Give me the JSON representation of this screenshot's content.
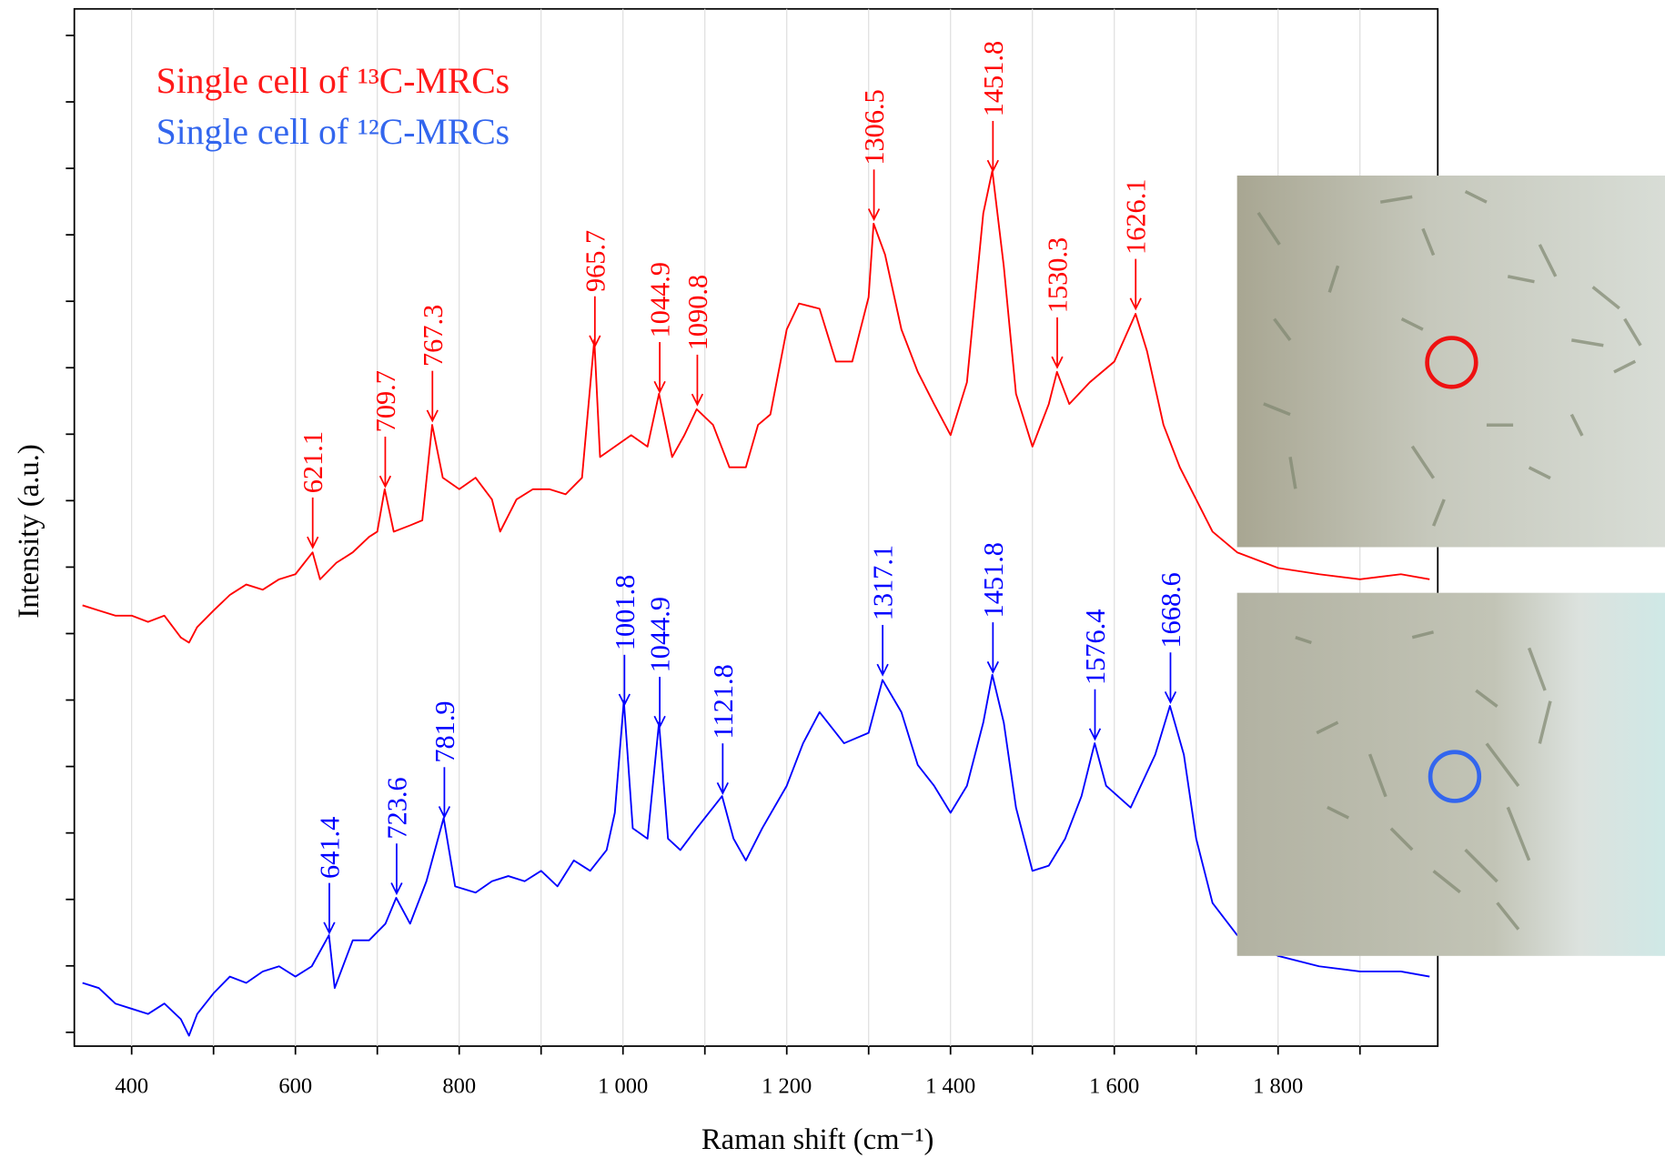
{
  "chart_data": {
    "type": "line",
    "x_label": "Raman shift (cm⁻¹)",
    "y_label": "Intensity (a.u.)",
    "xlim": [
      330,
      1995
    ],
    "ylim": [
      0,
      100
    ],
    "xticks": [
      400,
      600,
      800,
      {
        "value": 1000,
        "label": "1 000"
      },
      {
        "value": 1200,
        "label": "1 200"
      },
      {
        "value": 1400,
        "label": "1 400"
      },
      {
        "value": 1600,
        "label": "1 600"
      },
      {
        "value": 1800,
        "label": "1 800"
      }
    ],
    "xminorticks": [
      500,
      700,
      900,
      1100,
      1300,
      1500,
      1700,
      1900
    ],
    "grid": true,
    "legend": "upper left",
    "series": [
      {
        "name": "Single cell of ¹³C-MRCs",
        "color": "#ff0000",
        "legend_color": "#ff1a1a",
        "x": [
          340,
          360,
          380,
          400,
          420,
          440,
          460,
          470,
          480,
          500,
          520,
          540,
          560,
          580,
          600,
          621,
          630,
          650,
          670,
          690,
          700,
          709,
          720,
          740,
          755,
          767,
          780,
          800,
          820,
          840,
          850,
          870,
          890,
          910,
          930,
          950,
          965,
          972,
          990,
          1010,
          1030,
          1044,
          1060,
          1075,
          1090,
          1110,
          1130,
          1150,
          1165,
          1180,
          1200,
          1215,
          1240,
          1260,
          1280,
          1300,
          1306,
          1320,
          1340,
          1360,
          1380,
          1400,
          1420,
          1440,
          1451,
          1465,
          1480,
          1500,
          1520,
          1530,
          1545,
          1570,
          1600,
          1626,
          1640,
          1660,
          1680,
          1700,
          1720,
          1750,
          1800,
          1850,
          1900,
          1950,
          1985
        ],
        "values": [
          42.5,
          42.0,
          41.5,
          41.5,
          40.9,
          41.5,
          39.4,
          38.9,
          40.4,
          42.0,
          43.5,
          44.5,
          44.0,
          45.0,
          45.5,
          47.6,
          45.0,
          46.6,
          47.6,
          49.1,
          49.6,
          53.7,
          49.6,
          50.2,
          50.7,
          59.9,
          54.8,
          53.7,
          54.8,
          52.7,
          49.6,
          52.7,
          53.7,
          53.7,
          53.2,
          54.8,
          68.1,
          56.8,
          57.8,
          58.9,
          57.8,
          62.9,
          56.8,
          58.9,
          61.4,
          59.9,
          55.8,
          55.8,
          59.9,
          60.9,
          69.1,
          71.6,
          71.1,
          66.0,
          66.0,
          72.2,
          79.3,
          76.3,
          69.1,
          65.0,
          61.9,
          58.9,
          64.0,
          80.3,
          84.4,
          75.2,
          62.9,
          57.8,
          61.9,
          65.0,
          61.9,
          64.0,
          66.0,
          70.6,
          67.0,
          59.9,
          55.8,
          52.7,
          49.6,
          47.6,
          46.1,
          45.5,
          45.0,
          45.5,
          45.0
        ],
        "peaks": [
          621.1,
          709.7,
          767.3,
          965.7,
          1044.9,
          1090.8,
          1306.5,
          1451.8,
          1530.3,
          1626.1
        ]
      },
      {
        "name": "Single cell of ¹²C-MRCs",
        "color": "#0000ff",
        "legend_color": "#3366ee",
        "x": [
          340,
          360,
          380,
          400,
          420,
          440,
          460,
          470,
          480,
          500,
          520,
          540,
          560,
          580,
          600,
          620,
          641,
          648,
          670,
          690,
          710,
          723,
          740,
          760,
          781,
          795,
          820,
          840,
          860,
          880,
          900,
          920,
          940,
          960,
          980,
          990,
          1001,
          1012,
          1030,
          1044,
          1055,
          1070,
          1090,
          1110,
          1121,
          1135,
          1150,
          1170,
          1200,
          1220,
          1240,
          1270,
          1300,
          1317,
          1340,
          1360,
          1380,
          1400,
          1420,
          1440,
          1451,
          1465,
          1480,
          1500,
          1520,
          1540,
          1560,
          1576,
          1590,
          1620,
          1650,
          1668,
          1685,
          1700,
          1720,
          1750,
          1800,
          1850,
          1900,
          1950,
          1985
        ],
        "values": [
          6.1,
          5.6,
          4.1,
          3.6,
          3.1,
          4.1,
          2.6,
          1.0,
          3.1,
          5.1,
          6.7,
          6.1,
          7.2,
          7.7,
          6.7,
          7.7,
          10.7,
          5.6,
          10.2,
          10.2,
          11.8,
          14.3,
          11.8,
          15.9,
          22.0,
          15.4,
          14.8,
          15.9,
          16.4,
          15.9,
          16.9,
          15.4,
          17.9,
          16.9,
          18.9,
          22.5,
          33.3,
          21.0,
          20.0,
          31.2,
          20.0,
          18.9,
          21.0,
          23.0,
          24.1,
          20.0,
          17.9,
          21.0,
          25.1,
          29.2,
          32.2,
          29.2,
          30.2,
          35.3,
          32.2,
          27.1,
          25.1,
          22.5,
          25.1,
          31.2,
          35.8,
          31.2,
          23.0,
          16.9,
          17.4,
          20.0,
          24.1,
          29.2,
          25.1,
          23.0,
          28.1,
          32.8,
          28.1,
          20.0,
          13.8,
          10.7,
          8.7,
          7.7,
          7.2,
          7.2,
          6.7
        ],
        "peaks": [
          641.4,
          723.6,
          781.9,
          1001.8,
          1044.9,
          1121.8,
          1317.1,
          1451.8,
          1576.4,
          1668.6
        ]
      }
    ]
  }
}
